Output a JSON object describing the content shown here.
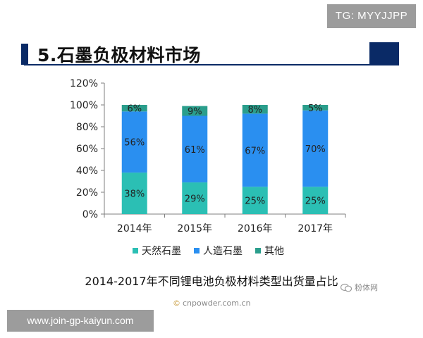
{
  "overlay": {
    "tg_label": "TG: MYYJJPP",
    "url_label": "www.join-gp-kaiyun.com"
  },
  "slide": {
    "title": "5.石墨负极材料市场",
    "caption": "2014-2017年不同锂电池负极材料类型出货量占比",
    "wechat_label": "粉体网",
    "source_copyright": "©",
    "source_label": "cnpowder.com.cn"
  },
  "colors": {
    "natural_graphite": "#2bbfb4",
    "artificial_graphite": "#2a8ff0",
    "other": "#2a9e8c",
    "title_bar": "#0a2a66",
    "axis": "#7f7f7f",
    "overlay_bg": "#9c9c9c"
  },
  "chart_data": {
    "type": "bar",
    "stacked": true,
    "categories": [
      "2014年",
      "2015年",
      "2016年",
      "2017年"
    ],
    "series": [
      {
        "name": "天然石墨",
        "values": [
          38,
          29,
          25,
          25
        ],
        "labels": [
          "38%",
          "29%",
          "25%",
          "25%"
        ]
      },
      {
        "name": "人造石墨",
        "values": [
          56,
          61,
          67,
          70
        ],
        "labels": [
          "56%",
          "61%",
          "67%",
          "70%"
        ]
      },
      {
        "name": "其他",
        "values": [
          6,
          9,
          8,
          5
        ],
        "labels": [
          "6%",
          "9%",
          "8%",
          "5%"
        ]
      }
    ],
    "yticks": [
      "0%",
      "20%",
      "40%",
      "60%",
      "80%",
      "100%",
      "120%"
    ],
    "ylim": [
      0,
      120
    ],
    "grid": false,
    "legend_position": "bottom"
  }
}
